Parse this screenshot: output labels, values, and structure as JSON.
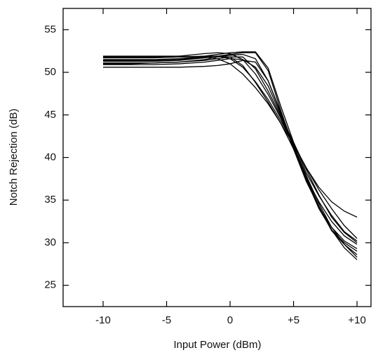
{
  "chart_data": {
    "type": "line",
    "x_label": "Input Power  (dBm)",
    "y_label": "Notch Rejection  (dB)",
    "x": [
      -10,
      -8,
      -6,
      -4,
      -2,
      -1,
      0,
      1,
      2,
      3,
      4,
      5,
      6,
      7,
      8,
      9,
      10
    ],
    "xlim": [
      -13.15,
      11.1
    ],
    "xticks": [
      -10,
      -5,
      0,
      {
        "value": 5,
        "label": "+5"
      },
      {
        "value": 10,
        "label": "+10"
      }
    ],
    "ylim": [
      22.5,
      57.5
    ],
    "yticks": [
      25,
      30,
      35,
      40,
      45,
      50,
      55
    ],
    "series": [
      {
        "color": "#000000",
        "values": [
          51.9,
          51.9,
          51.9,
          51.9,
          51.8,
          51.6,
          51.0,
          49.8,
          48.2,
          46.3,
          44.0,
          41.5,
          38.8,
          36.5,
          34.8,
          33.7,
          33.0
        ]
      },
      {
        "color": "#000000",
        "values": [
          51.7,
          51.7,
          51.7,
          51.8,
          51.9,
          51.9,
          51.6,
          50.6,
          48.9,
          46.8,
          44.3,
          41.6,
          38.8,
          36.2,
          34.0,
          32.0,
          30.5
        ]
      },
      {
        "color": "#000000",
        "values": [
          51.5,
          51.5,
          51.5,
          51.6,
          51.9,
          52.1,
          52.3,
          52.4,
          52.4,
          50.5,
          46.0,
          41.8,
          38.2,
          35.5,
          33.2,
          31.3,
          30.2
        ]
      },
      {
        "color": "#000000",
        "values": [
          51.3,
          51.3,
          51.3,
          51.4,
          51.7,
          51.9,
          52.1,
          52.3,
          52.3,
          50.2,
          45.5,
          41.2,
          37.6,
          34.8,
          32.5,
          30.8,
          29.8
        ]
      },
      {
        "color": "#000000",
        "values": [
          51.1,
          51.1,
          51.1,
          51.2,
          51.5,
          51.8,
          52.0,
          52.1,
          51.6,
          49.0,
          45.2,
          41.0,
          37.2,
          34.2,
          31.8,
          30.2,
          29.3
        ]
      },
      {
        "color": "#000000",
        "values": [
          50.9,
          50.9,
          50.9,
          51.0,
          51.2,
          51.4,
          51.6,
          51.5,
          50.6,
          48.4,
          45.0,
          41.2,
          37.4,
          34.0,
          31.5,
          30.0,
          29.0
        ]
      },
      {
        "color": "#000000",
        "values": [
          50.6,
          50.6,
          50.6,
          50.6,
          50.7,
          50.8,
          51.0,
          51.4,
          51.2,
          49.0,
          45.3,
          41.5,
          37.8,
          34.2,
          31.4,
          29.8,
          28.6
        ]
      },
      {
        "color": "#000000",
        "values": [
          51.8,
          51.8,
          51.8,
          51.9,
          52.2,
          52.3,
          52.2,
          51.5,
          49.8,
          47.4,
          44.6,
          41.4,
          37.9,
          34.6,
          31.8,
          29.8,
          28.3
        ]
      },
      {
        "color": "#000000",
        "values": [
          51.4,
          51.4,
          51.4,
          51.5,
          51.8,
          51.9,
          51.8,
          50.8,
          48.8,
          46.5,
          44.0,
          41.0,
          37.5,
          34.3,
          31.5,
          29.4,
          28.0
        ]
      },
      {
        "color": "#000000",
        "values": [
          51.0,
          51.0,
          51.1,
          51.2,
          51.4,
          51.6,
          51.8,
          51.8,
          50.4,
          47.8,
          44.8,
          41.8,
          38.6,
          35.6,
          33.0,
          31.2,
          30.0
        ]
      }
    ]
  }
}
